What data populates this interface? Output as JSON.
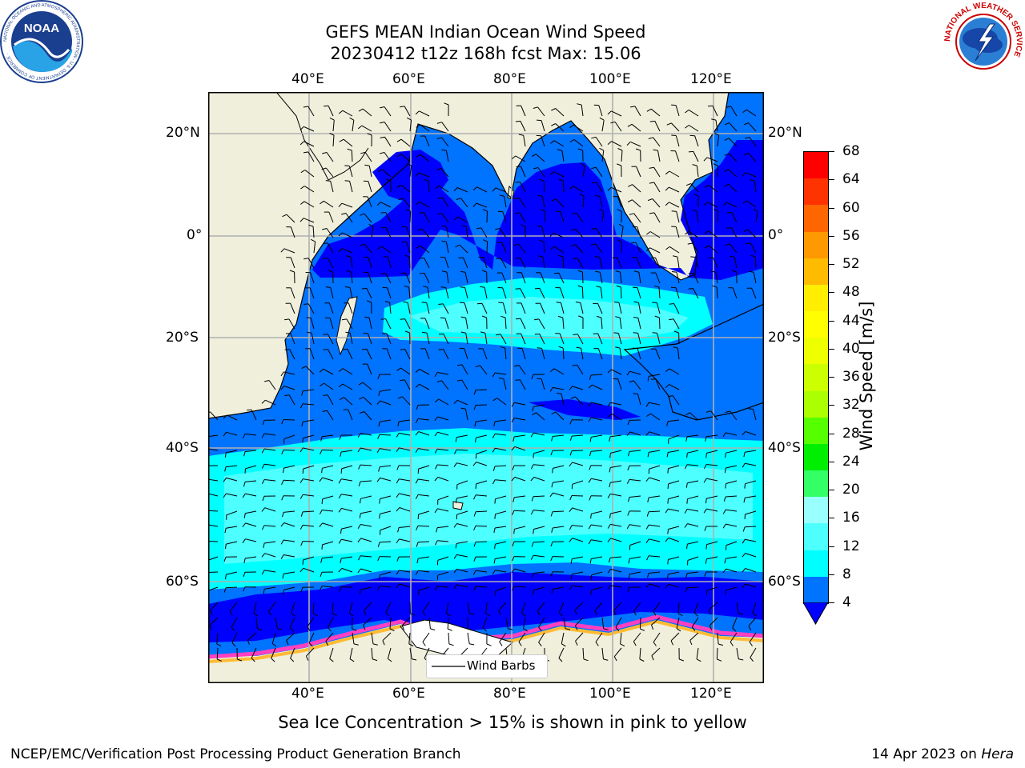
{
  "title_line1": "GEFS MEAN Indian Ocean Wind Speed",
  "title_line2": "20230412 t12z 168h fcst   Max: 15.06",
  "map": {
    "lon_ticks": [
      "40°E",
      "60°E",
      "80°E",
      "100°E",
      "120°E"
    ],
    "lat_ticks": [
      "20°N",
      "0°",
      "20°S",
      "40°S",
      "60°S"
    ],
    "legend_label": "Wind Barbs",
    "land_color": "#efefdc",
    "ocean_colors": [
      "#0000ff",
      "#0073ff",
      "#00ffff",
      "#4dffff"
    ]
  },
  "colorbar": {
    "label": "Wind Speed [m/s]",
    "ticks": [
      "68",
      "64",
      "60",
      "56",
      "52",
      "48",
      "44",
      "40",
      "36",
      "32",
      "28",
      "24",
      "20",
      "16",
      "12",
      "8",
      "4"
    ],
    "colors": [
      "#ff0000",
      "#ff3300",
      "#ff6600",
      "#ff9900",
      "#ffbb00",
      "#ffee00",
      "#ffff00",
      "#eeff00",
      "#ccff00",
      "#aaff00",
      "#55ff00",
      "#00ee00",
      "#33ff66",
      "#99ffff",
      "#4dffff",
      "#00ffff",
      "#0073ff"
    ],
    "under_color": "#0000ff"
  },
  "caption": "Sea Ice Concentration > 15% is shown in pink to yellow",
  "footer_left": "NCEP/EMC/Verification Post Processing Product Generation Branch",
  "footer_right_date": "14 Apr 2023 on ",
  "footer_right_machine": "Hera",
  "logos": {
    "noaa_text": "NOAA",
    "noaa_ring": "NATIONAL OCEANIC AND ATMOSPHERIC ADMINISTRATION · U.S. DEPARTMENT OF COMMERCE ·",
    "nws_ring": "NATIONAL WEATHER SERVICE"
  }
}
